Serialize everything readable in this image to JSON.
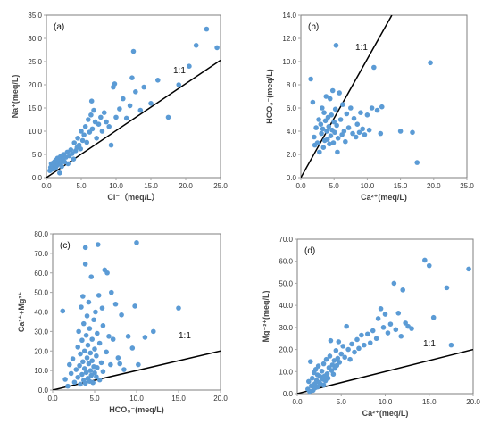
{
  "chart_data": [
    {
      "type": "scatter",
      "panel_label": "(a)",
      "xlabel": "Cl⁻（meq/L）",
      "ylabel": "Na⁺(meq/L)",
      "xlim": [
        0,
        25
      ],
      "ylim": [
        0,
        35
      ],
      "xticks": [
        "0.0",
        "5.0",
        "10.0",
        "15.0",
        "20.0",
        "25.0"
      ],
      "yticks": [
        "0.0",
        "5.0",
        "10.0",
        "15.0",
        "20.0",
        "25.0",
        "30.0",
        "35.0"
      ],
      "ratio_line_label": "1:1",
      "ratio_line": [
        [
          0,
          0
        ],
        [
          25,
          25.3
        ]
      ],
      "points_color": "#5b9bd5",
      "points": [
        [
          0.5,
          1.5
        ],
        [
          0.6,
          2.2
        ],
        [
          0.7,
          3.0
        ],
        [
          0.8,
          1.8
        ],
        [
          0.9,
          2.5
        ],
        [
          1.0,
          3.2
        ],
        [
          1.1,
          2.8
        ],
        [
          1.2,
          3.5
        ],
        [
          1.3,
          2.0
        ],
        [
          1.4,
          3.8
        ],
        [
          1.5,
          2.6
        ],
        [
          1.6,
          4.2
        ],
        [
          1.7,
          3.0
        ],
        [
          1.8,
          3.6
        ],
        [
          1.9,
          1.0
        ],
        [
          2.0,
          4.5
        ],
        [
          2.1,
          3.2
        ],
        [
          2.2,
          2.4
        ],
        [
          2.3,
          4.8
        ],
        [
          2.4,
          3.9
        ],
        [
          2.5,
          5.0
        ],
        [
          2.6,
          3.4
        ],
        [
          2.8,
          4.4
        ],
        [
          3.0,
          5.5
        ],
        [
          3.1,
          3.0
        ],
        [
          3.3,
          4.7
        ],
        [
          3.5,
          6.0
        ],
        [
          3.7,
          5.2
        ],
        [
          3.9,
          4.0
        ],
        [
          4.0,
          7.5
        ],
        [
          4.2,
          5.8
        ],
        [
          4.4,
          6.5
        ],
        [
          4.5,
          8.5
        ],
        [
          4.7,
          7.0
        ],
        [
          4.9,
          6.2
        ],
        [
          5.0,
          10.0
        ],
        [
          5.2,
          8.0
        ],
        [
          5.4,
          9.2
        ],
        [
          5.6,
          11.0
        ],
        [
          5.8,
          7.6
        ],
        [
          6.0,
          12.5
        ],
        [
          6.2,
          9.8
        ],
        [
          6.4,
          13.5
        ],
        [
          6.6,
          10.5
        ],
        [
          6.8,
          14.5
        ],
        [
          6.5,
          16.5
        ],
        [
          7.0,
          12.0
        ],
        [
          7.2,
          8.5
        ],
        [
          7.5,
          11.5
        ],
        [
          7.8,
          13.0
        ],
        [
          8.0,
          10.0
        ],
        [
          8.3,
          14.0
        ],
        [
          8.6,
          12.0
        ],
        [
          9.0,
          11.0
        ],
        [
          9.3,
          7.0
        ],
        [
          9.6,
          19.5
        ],
        [
          9.8,
          20.2
        ],
        [
          10.0,
          13.0
        ],
        [
          10.5,
          14.8
        ],
        [
          11.0,
          17.0
        ],
        [
          11.5,
          12.8
        ],
        [
          12.0,
          15.5
        ],
        [
          12.3,
          21.5
        ],
        [
          12.5,
          27.2
        ],
        [
          12.8,
          18.5
        ],
        [
          13.5,
          14.5
        ],
        [
          14.0,
          19.5
        ],
        [
          15.0,
          16.0
        ],
        [
          16.0,
          21.0
        ],
        [
          17.5,
          13.0
        ],
        [
          19.0,
          20.0
        ],
        [
          20.5,
          24.0
        ],
        [
          21.5,
          28.5
        ],
        [
          23.0,
          32.0
        ],
        [
          24.5,
          28.0
        ]
      ]
    },
    {
      "type": "scatter",
      "panel_label": "(b)",
      "xlabel": "Ca²⁺(meq/L)",
      "ylabel": "HCO₃⁻(meq/L)",
      "xlim": [
        0,
        25
      ],
      "ylim": [
        0,
        14
      ],
      "xticks": [
        "0.0",
        "5.0",
        "10.0",
        "15.0",
        "20.0",
        "25.0"
      ],
      "yticks": [
        "0.0",
        "2.0",
        "4.0",
        "6.0",
        "8.0",
        "10.0",
        "12.0",
        "14.0"
      ],
      "ratio_line_label": "1:1",
      "ratio_line": [
        [
          0,
          0
        ],
        [
          13.7,
          14
        ]
      ],
      "points_color": "#5b9bd5",
      "points": [
        [
          1.5,
          8.5
        ],
        [
          1.8,
          6.5
        ],
        [
          2.0,
          3.5
        ],
        [
          2.1,
          2.8
        ],
        [
          2.3,
          4.3
        ],
        [
          2.5,
          3.0
        ],
        [
          2.7,
          5.0
        ],
        [
          2.8,
          2.2
        ],
        [
          3.0,
          4.6
        ],
        [
          3.1,
          3.8
        ],
        [
          3.2,
          6.0
        ],
        [
          3.3,
          4.2
        ],
        [
          3.4,
          2.6
        ],
        [
          3.5,
          5.6
        ],
        [
          3.6,
          3.2
        ],
        [
          3.7,
          4.9
        ],
        [
          3.8,
          7.0
        ],
        [
          3.9,
          4.0
        ],
        [
          4.0,
          3.3
        ],
        [
          4.1,
          5.2
        ],
        [
          4.2,
          4.4
        ],
        [
          4.3,
          2.9
        ],
        [
          4.4,
          6.8
        ],
        [
          4.5,
          3.6
        ],
        [
          4.6,
          5.4
        ],
        [
          4.7,
          4.1
        ],
        [
          4.8,
          7.5
        ],
        [
          4.9,
          3.0
        ],
        [
          5.0,
          4.8
        ],
        [
          5.1,
          3.9
        ],
        [
          5.2,
          5.9
        ],
        [
          5.3,
          11.4
        ],
        [
          5.4,
          4.5
        ],
        [
          5.5,
          2.2
        ],
        [
          5.6,
          3.4
        ],
        [
          5.8,
          7.3
        ],
        [
          6.0,
          5.0
        ],
        [
          6.2,
          3.7
        ],
        [
          6.3,
          6.3
        ],
        [
          6.5,
          4.0
        ],
        [
          6.7,
          3.1
        ],
        [
          6.9,
          5.5
        ],
        [
          7.2,
          4.3
        ],
        [
          7.5,
          6.0
        ],
        [
          7.8,
          3.8
        ],
        [
          8.0,
          5.1
        ],
        [
          8.3,
          3.5
        ],
        [
          8.5,
          4.6
        ],
        [
          8.8,
          3.9
        ],
        [
          9.0,
          5.6
        ],
        [
          9.3,
          4.2
        ],
        [
          9.6,
          3.7
        ],
        [
          10.0,
          5.4
        ],
        [
          10.3,
          4.1
        ],
        [
          10.7,
          6.0
        ],
        [
          11.0,
          9.5
        ],
        [
          11.5,
          5.8
        ],
        [
          12.0,
          3.8
        ],
        [
          12.2,
          6.1
        ],
        [
          15.0,
          4.0
        ],
        [
          16.8,
          3.9
        ],
        [
          17.5,
          1.3
        ],
        [
          19.5,
          9.9
        ]
      ]
    },
    {
      "type": "scatter",
      "panel_label": "(c)",
      "xlabel": "HCO₃⁻(meq/L)",
      "ylabel": "Ca²⁺+Mg²⁺",
      "xlim": [
        0,
        20
      ],
      "ylim": [
        0,
        80
      ],
      "xticks": [
        "0.0",
        "5.0",
        "10.0",
        "15.0",
        "20.0"
      ],
      "yticks": [
        "0.0",
        "10.0",
        "20.0",
        "30.0",
        "40.0",
        "50.0",
        "60.0",
        "70.0",
        "80.0"
      ],
      "ratio_line_label": "1:1",
      "ratio_line": [
        [
          0,
          0
        ],
        [
          20,
          20
        ]
      ],
      "points_color": "#5b9bd5",
      "points": [
        [
          1.2,
          40.5
        ],
        [
          1.5,
          5.5
        ],
        [
          1.8,
          2.0
        ],
        [
          2.0,
          13.0
        ],
        [
          2.2,
          8.5
        ],
        [
          2.4,
          16.0
        ],
        [
          2.6,
          4.0
        ],
        [
          2.8,
          10.5
        ],
        [
          3.0,
          22.0
        ],
        [
          3.0,
          6.5
        ],
        [
          3.1,
          30.0
        ],
        [
          3.2,
          12.5
        ],
        [
          3.3,
          3.0
        ],
        [
          3.3,
          18.5
        ],
        [
          3.4,
          42.5
        ],
        [
          3.5,
          8.0
        ],
        [
          3.5,
          25.5
        ],
        [
          3.6,
          48.0
        ],
        [
          3.6,
          14.5
        ],
        [
          3.7,
          5.0
        ],
        [
          3.7,
          34.0
        ],
        [
          3.8,
          20.0
        ],
        [
          3.8,
          11.0
        ],
        [
          3.9,
          64.5
        ],
        [
          3.9,
          3.5
        ],
        [
          3.9,
          73.0
        ],
        [
          4.0,
          28.0
        ],
        [
          4.0,
          9.0
        ],
        [
          4.1,
          16.5
        ],
        [
          4.1,
          38.0
        ],
        [
          4.2,
          6.0
        ],
        [
          4.2,
          23.0
        ],
        [
          4.3,
          13.5
        ],
        [
          4.3,
          45.0
        ],
        [
          4.4,
          4.5
        ],
        [
          4.4,
          31.5
        ],
        [
          4.5,
          19.0
        ],
        [
          4.5,
          10.0
        ],
        [
          4.6,
          58.0
        ],
        [
          4.6,
          7.5
        ],
        [
          4.7,
          26.0
        ],
        [
          4.7,
          15.0
        ],
        [
          4.8,
          3.8
        ],
        [
          4.9,
          36.0
        ],
        [
          4.9,
          12.0
        ],
        [
          5.0,
          21.0
        ],
        [
          5.0,
          8.8
        ],
        [
          5.1,
          40.0
        ],
        [
          5.2,
          6.8
        ],
        [
          5.2,
          17.5
        ],
        [
          5.3,
          29.0
        ],
        [
          5.3,
          11.5
        ],
        [
          5.4,
          74.5
        ],
        [
          5.5,
          48.5
        ],
        [
          5.6,
          5.2
        ],
        [
          5.6,
          24.0
        ],
        [
          5.8,
          14.0
        ],
        [
          5.9,
          42.0
        ],
        [
          6.0,
          33.0
        ],
        [
          6.0,
          9.5
        ],
        [
          6.2,
          61.5
        ],
        [
          6.4,
          19.5
        ],
        [
          6.5,
          60.0
        ],
        [
          6.7,
          27.5
        ],
        [
          6.9,
          13.0
        ],
        [
          7.0,
          50.0
        ],
        [
          7.2,
          26.0
        ],
        [
          7.5,
          44.0
        ],
        [
          7.8,
          16.5
        ],
        [
          8.0,
          13.5
        ],
        [
          8.2,
          38.5
        ],
        [
          8.5,
          10.5
        ],
        [
          9.0,
          27.5
        ],
        [
          9.5,
          21.5
        ],
        [
          9.8,
          43.0
        ],
        [
          10.0,
          75.5
        ],
        [
          10.2,
          13.0
        ],
        [
          11.0,
          27.0
        ],
        [
          12.0,
          30.0
        ],
        [
          15.0,
          42.0
        ]
      ]
    },
    {
      "type": "scatter",
      "panel_label": "(d)",
      "xlabel": "Ca²⁺(meq/L)",
      "ylabel": "Mg⁻²⁺(meq/L)",
      "xlim": [
        0,
        20
      ],
      "ylim": [
        0,
        70
      ],
      "xticks": [
        "0.0",
        "5.0",
        "10.0",
        "15.0",
        "20.0"
      ],
      "yticks": [
        "0.0",
        "10.0",
        "20.0",
        "30.0",
        "40.0",
        "50.0",
        "60.0",
        "70.0"
      ],
      "ratio_line_label": "1:1",
      "ratio_line": [
        [
          0,
          0
        ],
        [
          20,
          20
        ]
      ],
      "points_color": "#5b9bd5",
      "points": [
        [
          1.2,
          2.0
        ],
        [
          1.3,
          5.5
        ],
        [
          1.4,
          1.0
        ],
        [
          1.5,
          14.5
        ],
        [
          1.6,
          3.5
        ],
        [
          1.7,
          7.0
        ],
        [
          1.8,
          1.5
        ],
        [
          1.9,
          9.5
        ],
        [
          2.0,
          4.5
        ],
        [
          2.0,
          2.5
        ],
        [
          2.1,
          11.0
        ],
        [
          2.2,
          6.0
        ],
        [
          2.3,
          3.0
        ],
        [
          2.3,
          8.5
        ],
        [
          2.4,
          12.5
        ],
        [
          2.5,
          5.0
        ],
        [
          2.6,
          7.8
        ],
        [
          2.7,
          4.2
        ],
        [
          2.8,
          10.2
        ],
        [
          2.9,
          6.5
        ],
        [
          3.0,
          13.5
        ],
        [
          3.0,
          3.8
        ],
        [
          3.1,
          8.0
        ],
        [
          3.2,
          5.8
        ],
        [
          3.3,
          15.5
        ],
        [
          3.4,
          9.0
        ],
        [
          3.5,
          7.0
        ],
        [
          3.6,
          11.8
        ],
        [
          3.7,
          17.0
        ],
        [
          3.8,
          24.0
        ],
        [
          3.9,
          10.5
        ],
        [
          4.0,
          13.0
        ],
        [
          4.1,
          8.8
        ],
        [
          4.2,
          15.0
        ],
        [
          4.3,
          11.5
        ],
        [
          4.4,
          19.5
        ],
        [
          4.5,
          12.8
        ],
        [
          4.6,
          16.0
        ],
        [
          4.7,
          23.5
        ],
        [
          4.8,
          14.2
        ],
        [
          5.0,
          18.0
        ],
        [
          5.2,
          21.5
        ],
        [
          5.4,
          16.5
        ],
        [
          5.6,
          30.5
        ],
        [
          5.8,
          20.0
        ],
        [
          6.0,
          15.5
        ],
        [
          6.2,
          22.5
        ],
        [
          6.5,
          18.8
        ],
        [
          6.8,
          24.5
        ],
        [
          7.0,
          20.5
        ],
        [
          7.3,
          26.5
        ],
        [
          7.6,
          22.0
        ],
        [
          8.0,
          27.0
        ],
        [
          8.3,
          23.0
        ],
        [
          8.6,
          28.5
        ],
        [
          9.0,
          25.0
        ],
        [
          9.2,
          34.0
        ],
        [
          9.5,
          38.5
        ],
        [
          9.8,
          30.0
        ],
        [
          10.0,
          36.0
        ],
        [
          10.3,
          27.5
        ],
        [
          10.6,
          31.5
        ],
        [
          11.0,
          50.0
        ],
        [
          11.2,
          29.0
        ],
        [
          11.5,
          36.5
        ],
        [
          11.8,
          26.0
        ],
        [
          12.0,
          47.0
        ],
        [
          12.3,
          32.0
        ],
        [
          12.6,
          30.5
        ],
        [
          13.0,
          29.5
        ],
        [
          14.5,
          60.5
        ],
        [
          15.0,
          58.0
        ],
        [
          15.5,
          34.5
        ],
        [
          17.0,
          48.0
        ],
        [
          17.5,
          22.0
        ],
        [
          19.5,
          56.5
        ]
      ]
    }
  ]
}
